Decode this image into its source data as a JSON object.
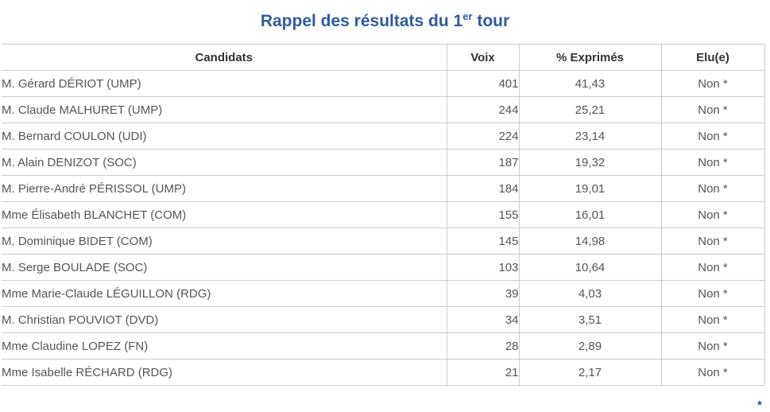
{
  "title": {
    "prefix": "Rappel des résultats du 1",
    "superscript": "er",
    "suffix": " tour"
  },
  "colors": {
    "accent_blue": "#2e5b9d",
    "border_gray": "#cccccc",
    "header_text": "#333333",
    "body_text": "#555555"
  },
  "table": {
    "headers": [
      "Candidats",
      "Voix",
      "% Exprimés",
      "Elu(e)"
    ],
    "rows": [
      {
        "candidat": "M. Gérard DÉRIOT (UMP)",
        "voix": "401",
        "exprimes": "41,43",
        "elu": "Non *"
      },
      {
        "candidat": "M. Claude MALHURET (UMP)",
        "voix": "244",
        "exprimes": "25,21",
        "elu": "Non *"
      },
      {
        "candidat": "M. Bernard COULON (UDI)",
        "voix": "224",
        "exprimes": "23,14",
        "elu": "Non *"
      },
      {
        "candidat": "M. Alain DENIZOT (SOC)",
        "voix": "187",
        "exprimes": "19,32",
        "elu": "Non *"
      },
      {
        "candidat": "M. Pierre-André PÉRISSOL (UMP)",
        "voix": "184",
        "exprimes": "19,01",
        "elu": "Non *"
      },
      {
        "candidat": "Mme Élisabeth BLANCHET (COM)",
        "voix": "155",
        "exprimes": "16,01",
        "elu": "Non *"
      },
      {
        "candidat": "M. Dominique BIDET (COM)",
        "voix": "145",
        "exprimes": "14,98",
        "elu": "Non *"
      },
      {
        "candidat": "M. Serge BOULADE (SOC)",
        "voix": "103",
        "exprimes": "10,64",
        "elu": "Non *"
      },
      {
        "candidat": "Mme Marie-Claude LÉGUILLON (RDG)",
        "voix": "39",
        "exprimes": "4,03",
        "elu": "Non *"
      },
      {
        "candidat": "M. Christian POUVIOT (DVD)",
        "voix": "34",
        "exprimes": "3,51",
        "elu": "Non *"
      },
      {
        "candidat": "Mme Claudine LOPEZ (FN)",
        "voix": "28",
        "exprimes": "2,89",
        "elu": "Non *"
      },
      {
        "candidat": "Mme Isabelle RÉCHARD (RDG)",
        "voix": "21",
        "exprimes": "2,17",
        "elu": "Non *"
      }
    ]
  },
  "footnote_marker": "*"
}
